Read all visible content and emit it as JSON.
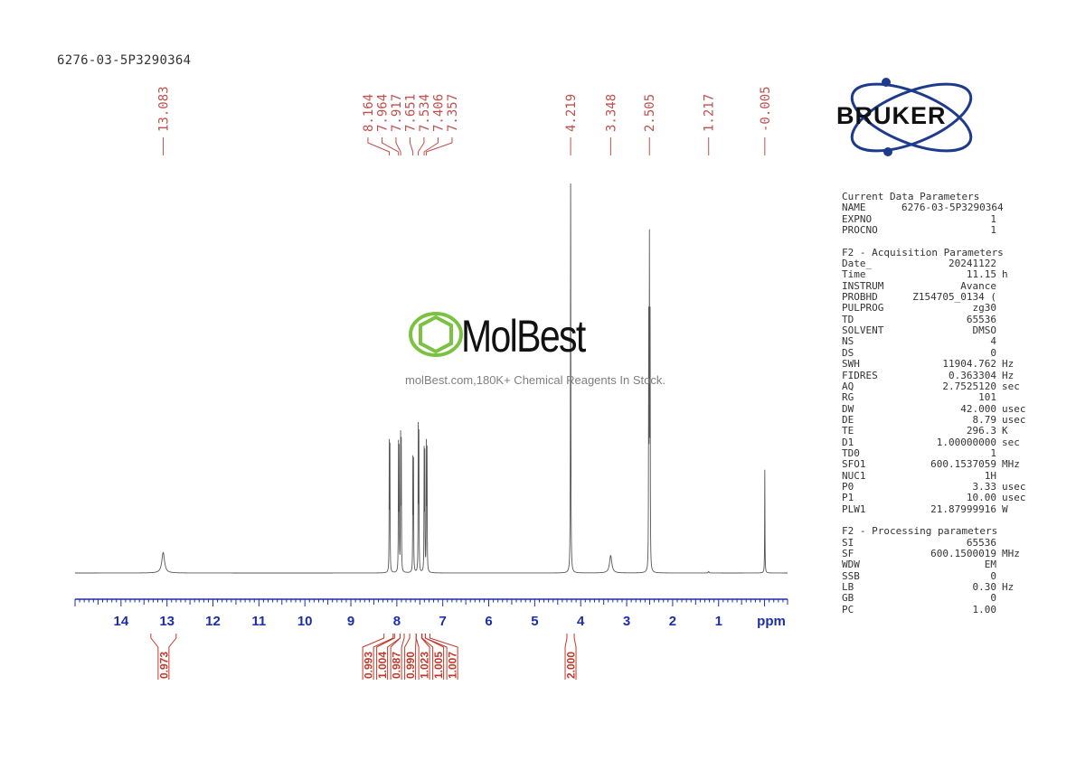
{
  "title": "6276-03-5P3290364",
  "brand": {
    "logo_text": "BRUKER",
    "watermark_name": "MolBest",
    "watermark_tagline": "molBest.com,180K+ Chemical Reagents In Stock."
  },
  "colors": {
    "peak_label": "#c0504d",
    "axis": "#1c2fa8",
    "integral": "#c0392b",
    "spectrum": "#555555",
    "logo": "#1e3a8a",
    "watermark_green": "#7cc242"
  },
  "parameters": [
    {
      "heading": "Current Data Parameters",
      "rows": [
        {
          "key": "NAME",
          "value": "6276-03-5P3290364",
          "unit": ""
        },
        {
          "key": "EXPNO",
          "value": "1",
          "unit": ""
        },
        {
          "key": "PROCNO",
          "value": "1",
          "unit": ""
        }
      ]
    },
    {
      "heading": "F2 - Acquisition Parameters",
      "rows": [
        {
          "key": "Date_",
          "value": "20241122",
          "unit": ""
        },
        {
          "key": "Time",
          "value": "11.15",
          "unit": "h"
        },
        {
          "key": "INSTRUM",
          "value": "Avance",
          "unit": ""
        },
        {
          "key": "PROBHD",
          "value": "Z154705_0134 (",
          "unit": ""
        },
        {
          "key": "PULPROG",
          "value": "zg30",
          "unit": ""
        },
        {
          "key": "TD",
          "value": "65536",
          "unit": ""
        },
        {
          "key": "SOLVENT",
          "value": "DMSO",
          "unit": ""
        },
        {
          "key": "NS",
          "value": "4",
          "unit": ""
        },
        {
          "key": "DS",
          "value": "0",
          "unit": ""
        },
        {
          "key": "SWH",
          "value": "11904.762",
          "unit": "Hz"
        },
        {
          "key": "FIDRES",
          "value": "0.363304",
          "unit": "Hz"
        },
        {
          "key": "AQ",
          "value": "2.7525120",
          "unit": "sec"
        },
        {
          "key": "RG",
          "value": "101",
          "unit": ""
        },
        {
          "key": "DW",
          "value": "42.000",
          "unit": "usec"
        },
        {
          "key": "DE",
          "value": "8.79",
          "unit": "usec"
        },
        {
          "key": "TE",
          "value": "296.3",
          "unit": "K"
        },
        {
          "key": "D1",
          "value": "1.00000000",
          "unit": "sec"
        },
        {
          "key": "TD0",
          "value": "1",
          "unit": ""
        },
        {
          "key": "SFO1",
          "value": "600.1537059",
          "unit": "MHz"
        },
        {
          "key": "NUC1",
          "value": "1H",
          "unit": ""
        },
        {
          "key": "P0",
          "value": "3.33",
          "unit": "usec"
        },
        {
          "key": "P1",
          "value": "10.00",
          "unit": "usec"
        },
        {
          "key": "PLW1",
          "value": "21.87999916",
          "unit": "W"
        }
      ]
    },
    {
      "heading": "F2 - Processing parameters",
      "rows": [
        {
          "key": "SI",
          "value": "65536",
          "unit": ""
        },
        {
          "key": "SF",
          "value": "600.1500019",
          "unit": "MHz"
        },
        {
          "key": "WDW",
          "value": "EM",
          "unit": ""
        },
        {
          "key": "SSB",
          "value": "0",
          "unit": ""
        },
        {
          "key": "LB",
          "value": "0.30",
          "unit": "Hz"
        },
        {
          "key": "GB",
          "value": "0",
          "unit": ""
        },
        {
          "key": "PC",
          "value": "1.00",
          "unit": ""
        }
      ]
    }
  ],
  "chart_data": {
    "type": "line",
    "xlabel": "ppm",
    "xlim": [
      15.0,
      -0.5
    ],
    "x_reversed": true,
    "ticks": [
      14,
      13,
      12,
      11,
      10,
      9,
      8,
      7,
      6,
      5,
      4,
      3,
      2,
      1
    ],
    "peak_labels": [
      "13.083",
      "8.164",
      "7.964",
      "7.917",
      "7.651",
      "7.534",
      "7.406",
      "7.357",
      "4.219",
      "3.348",
      "2.505",
      "1.217",
      "-0.005"
    ],
    "peak_groups": [
      {
        "labels": [
          "13.083"
        ],
        "ppm": [
          13.083
        ]
      },
      {
        "labels": [
          "8.164",
          "7.964",
          "7.917",
          "7.651",
          "7.534",
          "7.406",
          "7.357"
        ],
        "ppm": [
          8.164,
          7.964,
          7.917,
          7.651,
          7.534,
          7.406,
          7.357
        ]
      },
      {
        "labels": [
          "4.219"
        ],
        "ppm": [
          4.219
        ]
      },
      {
        "labels": [
          "3.348"
        ],
        "ppm": [
          3.348
        ]
      },
      {
        "labels": [
          "2.505"
        ],
        "ppm": [
          2.505
        ]
      },
      {
        "labels": [
          "1.217"
        ],
        "ppm": [
          1.217
        ]
      },
      {
        "labels": [
          "-0.005"
        ],
        "ppm": [
          -0.005
        ]
      }
    ],
    "peaks": [
      {
        "ppm": 13.083,
        "intensity": 0.053,
        "width": 0.035
      },
      {
        "ppm": 8.164,
        "intensity": 0.32,
        "width": 0.004
      },
      {
        "ppm": 8.15,
        "intensity": 0.31,
        "width": 0.004
      },
      {
        "ppm": 7.964,
        "intensity": 0.315,
        "width": 0.004
      },
      {
        "ppm": 7.95,
        "intensity": 0.3,
        "width": 0.004
      },
      {
        "ppm": 7.917,
        "intensity": 0.335,
        "width": 0.004
      },
      {
        "ppm": 7.903,
        "intensity": 0.32,
        "width": 0.004
      },
      {
        "ppm": 7.651,
        "intensity": 0.28,
        "width": 0.004
      },
      {
        "ppm": 7.637,
        "intensity": 0.275,
        "width": 0.004
      },
      {
        "ppm": 7.534,
        "intensity": 0.36,
        "width": 0.004
      },
      {
        "ppm": 7.52,
        "intensity": 0.34,
        "width": 0.004
      },
      {
        "ppm": 7.406,
        "intensity": 0.3,
        "width": 0.004
      },
      {
        "ppm": 7.392,
        "intensity": 0.29,
        "width": 0.004
      },
      {
        "ppm": 7.357,
        "intensity": 0.315,
        "width": 0.004
      },
      {
        "ppm": 7.343,
        "intensity": 0.3,
        "width": 0.004
      },
      {
        "ppm": 4.219,
        "intensity": 1.0,
        "width": 0.005
      },
      {
        "ppm": 3.348,
        "intensity": 0.045,
        "width": 0.03
      },
      {
        "ppm": 2.505,
        "intensity": 0.8,
        "width": 0.004
      },
      {
        "ppm": 2.52,
        "intensity": 0.62,
        "width": 0.004
      },
      {
        "ppm": 2.49,
        "intensity": 0.62,
        "width": 0.004
      },
      {
        "ppm": 1.217,
        "intensity": 0.004,
        "width": 0.01
      },
      {
        "ppm": -0.005,
        "intensity": 0.265,
        "width": 0.004
      }
    ],
    "integrals": [
      {
        "label": "0.973",
        "from": 13.35,
        "to": 12.8
      },
      {
        "label": "0.993",
        "from": 8.28,
        "to": 8.08
      },
      {
        "label": "1.004",
        "from": 8.05,
        "to": 7.93
      },
      {
        "label": "0.987",
        "from": 7.93,
        "to": 7.84
      },
      {
        "label": "0.990",
        "from": 7.72,
        "to": 7.58
      },
      {
        "label": "1.023",
        "from": 7.58,
        "to": 7.46
      },
      {
        "label": "1.005",
        "from": 7.45,
        "to": 7.38
      },
      {
        "label": "1.007",
        "from": 7.38,
        "to": 7.28
      },
      {
        "label": "2.000",
        "from": 4.3,
        "to": 4.14
      }
    ]
  }
}
